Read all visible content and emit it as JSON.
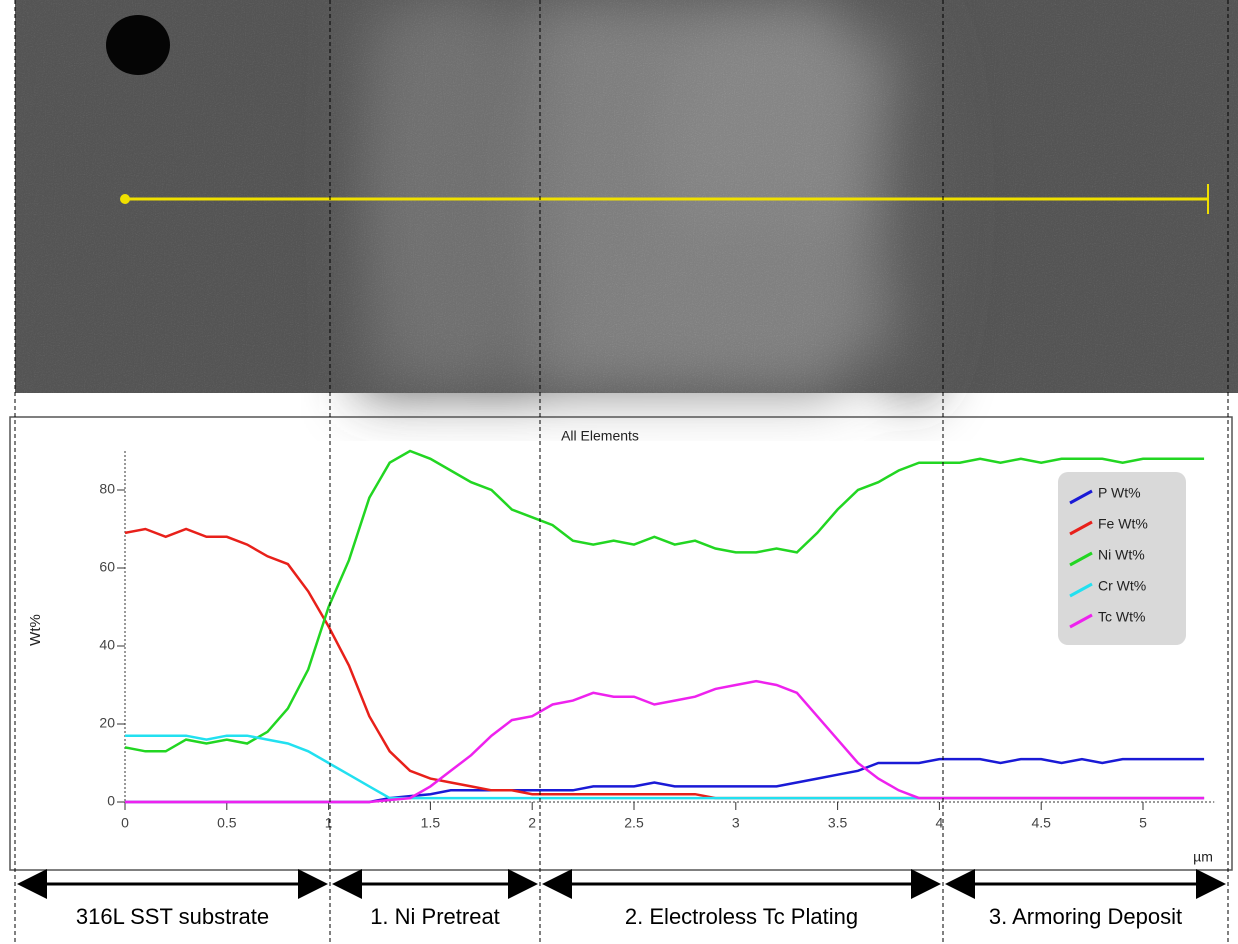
{
  "chart_data": {
    "type": "line",
    "title": "All Elements",
    "xlabel": "µm",
    "ylabel": "Wt%",
    "x": [
      0,
      0.1,
      0.2,
      0.3,
      0.4,
      0.5,
      0.6,
      0.7,
      0.8,
      0.9,
      1.0,
      1.1,
      1.2,
      1.3,
      1.4,
      1.5,
      1.6,
      1.7,
      1.8,
      1.9,
      2.0,
      2.1,
      2.2,
      2.3,
      2.4,
      2.5,
      2.6,
      2.7,
      2.8,
      2.9,
      3.0,
      3.1,
      3.2,
      3.3,
      3.4,
      3.5,
      3.6,
      3.7,
      3.8,
      3.9,
      4.0,
      4.1,
      4.2,
      4.3,
      4.4,
      4.5,
      4.6,
      4.7,
      4.8,
      4.9,
      5.0,
      5.1,
      5.2,
      5.3
    ],
    "series": [
      {
        "name": "P Wt%",
        "color": "#1a1ad6",
        "values": [
          0,
          0,
          0,
          0,
          0,
          0,
          0,
          0,
          0,
          0,
          0,
          0,
          0,
          1,
          1.5,
          2,
          3,
          3,
          3,
          3,
          3,
          3,
          3,
          4,
          4,
          4,
          5,
          4,
          4,
          4,
          4,
          4,
          4,
          5,
          6,
          7,
          8,
          10,
          10,
          10,
          11,
          11,
          11,
          10,
          11,
          11,
          10,
          11,
          10,
          11,
          11,
          11,
          11,
          11
        ]
      },
      {
        "name": "Fe Wt%",
        "color": "#e8201a",
        "values": [
          69,
          70,
          68,
          70,
          68,
          68,
          66,
          63,
          61,
          54,
          45,
          35,
          22,
          13,
          8,
          6,
          5,
          4,
          3,
          3,
          2,
          2,
          2,
          2,
          2,
          2,
          2,
          2,
          2,
          1,
          1,
          1,
          1,
          1,
          1,
          1,
          1,
          1,
          1,
          1,
          1,
          1,
          1,
          1,
          1,
          1,
          1,
          1,
          1,
          1,
          1,
          1,
          1,
          1
        ]
      },
      {
        "name": "Ni Wt%",
        "color": "#22d622",
        "values": [
          14,
          13,
          13,
          16,
          15,
          16,
          15,
          18,
          24,
          34,
          50,
          62,
          78,
          87,
          90,
          88,
          85,
          82,
          80,
          75,
          73,
          71,
          67,
          66,
          67,
          66,
          68,
          66,
          67,
          65,
          64,
          64,
          65,
          64,
          69,
          75,
          80,
          82,
          85,
          87,
          87,
          87,
          88,
          87,
          88,
          87,
          88,
          88,
          88,
          87,
          88,
          88,
          88,
          88
        ]
      },
      {
        "name": "Cr Wt%",
        "color": "#22e0f0",
        "values": [
          17,
          17,
          17,
          17,
          16,
          17,
          17,
          16,
          15,
          13,
          10,
          7,
          4,
          1,
          1,
          1,
          1,
          1,
          1,
          1,
          1,
          1,
          1,
          1,
          1,
          1,
          1,
          1,
          1,
          1,
          1,
          1,
          1,
          1,
          1,
          1,
          1,
          1,
          1,
          1,
          1,
          1,
          1,
          1,
          1,
          1,
          1,
          1,
          1,
          1,
          1,
          1,
          1,
          1
        ]
      },
      {
        "name": "Tc Wt%",
        "color": "#ee22ee",
        "values": [
          0,
          0,
          0,
          0,
          0,
          0,
          0,
          0,
          0,
          0,
          0,
          0,
          0,
          0.5,
          1,
          4,
          8,
          12,
          17,
          21,
          22,
          25,
          26,
          28,
          27,
          27,
          25,
          26,
          27,
          29,
          30,
          31,
          30,
          28,
          22,
          16,
          10,
          6,
          3,
          1,
          1,
          1,
          1,
          1,
          1,
          1,
          1,
          1,
          1,
          1,
          1,
          1,
          1,
          1
        ]
      }
    ],
    "xlim": [
      0,
      5.35
    ],
    "ylim": [
      0,
      90
    ],
    "xticks": [
      0,
      0.5,
      1,
      1.5,
      2,
      2.5,
      3,
      3.5,
      4,
      4.5,
      5
    ],
    "yticks": [
      0,
      20,
      40,
      60,
      80
    ],
    "legend": "upper right",
    "regions": [
      "316L SST substrate",
      "1. Ni Pretreat",
      "2.  Electroless Tc Plating",
      "3.  Armoring Deposit"
    ]
  }
}
